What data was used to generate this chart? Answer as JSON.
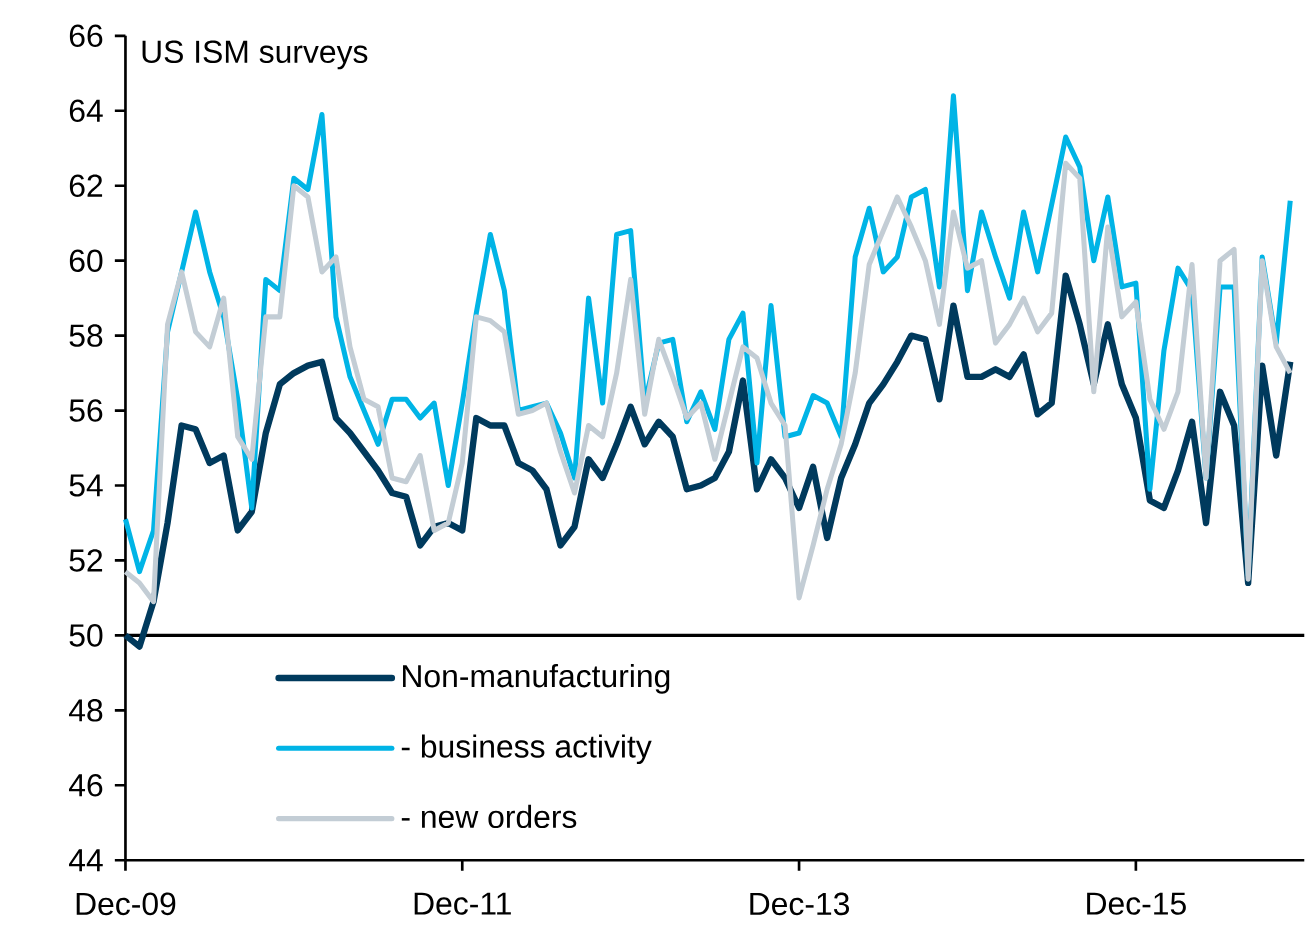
{
  "chart_data": {
    "type": "line",
    "title": "US ISM surveys",
    "x": [
      "2009-12",
      "2010-01",
      "2010-02",
      "2010-03",
      "2010-04",
      "2010-05",
      "2010-06",
      "2010-07",
      "2010-08",
      "2010-09",
      "2010-10",
      "2010-11",
      "2010-12",
      "2011-01",
      "2011-02",
      "2011-03",
      "2011-04",
      "2011-05",
      "2011-06",
      "2011-07",
      "2011-08",
      "2011-09",
      "2011-10",
      "2011-11",
      "2011-12",
      "2012-01",
      "2012-02",
      "2012-03",
      "2012-04",
      "2012-05",
      "2012-06",
      "2012-07",
      "2012-08",
      "2012-09",
      "2012-10",
      "2012-11",
      "2012-12",
      "2013-01",
      "2013-02",
      "2013-03",
      "2013-04",
      "2013-05",
      "2013-06",
      "2013-07",
      "2013-08",
      "2013-09",
      "2013-10",
      "2013-11",
      "2013-12",
      "2014-01",
      "2014-02",
      "2014-03",
      "2014-04",
      "2014-05",
      "2014-06",
      "2014-07",
      "2014-08",
      "2014-09",
      "2014-10",
      "2014-11",
      "2014-12",
      "2015-01",
      "2015-02",
      "2015-03",
      "2015-04",
      "2015-05",
      "2015-06",
      "2015-07",
      "2015-08",
      "2015-09",
      "2015-10",
      "2015-11",
      "2015-12",
      "2016-01",
      "2016-02",
      "2016-03",
      "2016-04",
      "2016-05",
      "2016-06",
      "2016-07",
      "2016-08",
      "2016-09",
      "2016-10",
      "2016-11"
    ],
    "series": [
      {
        "name": "Non-manufacturing",
        "color": "#003a5d",
        "values": [
          50.0,
          49.7,
          50.9,
          53.0,
          55.6,
          55.5,
          54.6,
          54.8,
          52.8,
          53.3,
          55.4,
          56.7,
          57.0,
          57.2,
          57.3,
          55.8,
          55.4,
          54.9,
          54.4,
          53.8,
          53.7,
          52.4,
          52.9,
          53.0,
          52.8,
          55.8,
          55.6,
          55.6,
          54.6,
          54.4,
          53.9,
          52.4,
          52.9,
          54.7,
          54.2,
          55.1,
          56.1,
          55.1,
          55.7,
          55.3,
          53.9,
          54.0,
          54.2,
          54.9,
          56.8,
          53.9,
          54.7,
          54.2,
          53.4,
          54.5,
          52.6,
          54.2,
          55.1,
          56.2,
          56.7,
          57.3,
          58.0,
          57.9,
          56.3,
          58.8,
          56.9,
          56.9,
          57.1,
          56.9,
          57.5,
          55.9,
          56.2,
          59.6,
          58.3,
          56.7,
          58.3,
          56.7,
          55.8,
          53.6,
          53.4,
          54.4,
          55.7,
          53.0,
          56.5,
          55.6,
          51.4,
          57.2,
          54.8,
          57.3
        ]
      },
      {
        "name": "- business activity",
        "color": "#00b4e6",
        "values": [
          53.1,
          51.7,
          52.8,
          58.1,
          59.7,
          61.3,
          59.7,
          58.5,
          56.3,
          53.4,
          59.5,
          59.2,
          62.2,
          61.9,
          63.9,
          58.5,
          56.9,
          56.0,
          55.1,
          56.3,
          56.3,
          55.8,
          56.2,
          54.0,
          56.2,
          58.6,
          60.7,
          59.2,
          56.0,
          56.1,
          56.2,
          55.4,
          54.2,
          59.0,
          56.2,
          60.7,
          60.8,
          56.2,
          57.8,
          57.9,
          55.7,
          56.5,
          55.5,
          57.9,
          58.6,
          54.6,
          58.8,
          55.3,
          55.4,
          56.4,
          56.2,
          55.3,
          60.1,
          61.4,
          59.7,
          60.1,
          61.7,
          61.9,
          59.3,
          64.4,
          59.2,
          61.3,
          60.1,
          59.0,
          61.3,
          59.7,
          61.5,
          63.3,
          62.5,
          60.0,
          61.7,
          59.3,
          59.4,
          53.9,
          57.6,
          59.8,
          59.2,
          54.2,
          59.3,
          59.3,
          51.6,
          60.1,
          57.8,
          61.6
        ]
      },
      {
        "name": "- new orders",
        "color": "#c3cdd5",
        "values": [
          51.7,
          51.4,
          50.9,
          58.3,
          59.7,
          58.1,
          57.7,
          59.0,
          55.3,
          54.7,
          58.5,
          58.5,
          62.0,
          61.7,
          59.7,
          60.1,
          57.7,
          56.3,
          56.1,
          54.2,
          54.1,
          54.8,
          52.8,
          53.0,
          54.6,
          58.5,
          58.4,
          58.1,
          55.9,
          56.0,
          56.2,
          54.9,
          53.8,
          55.6,
          55.3,
          57.0,
          59.5,
          55.9,
          57.9,
          56.9,
          55.8,
          56.2,
          54.7,
          56.2,
          57.7,
          57.4,
          56.2,
          55.6,
          51.0,
          52.4,
          53.9,
          55.1,
          57.0,
          59.9,
          60.8,
          61.7,
          60.9,
          60.0,
          58.3,
          61.3,
          59.8,
          60.0,
          57.8,
          58.3,
          59.0,
          58.1,
          58.6,
          62.6,
          62.2,
          56.5,
          60.9,
          58.5,
          58.9,
          56.3,
          55.5,
          56.5,
          59.9,
          54.2,
          60.0,
          60.3,
          51.5,
          60.0,
          57.7,
          57.0
        ]
      }
    ],
    "xlim": [
      "2009-12",
      "2016-12"
    ],
    "xticks": [
      {
        "value": "2009-12",
        "label": "Dec-09"
      },
      {
        "value": "2011-12",
        "label": "Dec-11"
      },
      {
        "value": "2013-12",
        "label": "Dec-13"
      },
      {
        "value": "2015-12",
        "label": "Dec-15"
      }
    ],
    "ylim": [
      44,
      66
    ],
    "yticks": [
      44,
      46,
      48,
      50,
      52,
      54,
      56,
      58,
      60,
      62,
      64,
      66
    ],
    "ref_lines": [
      {
        "axis": "y",
        "value": 50,
        "color": "#000000"
      }
    ],
    "legend": "bottom left",
    "grid": false,
    "marker": "none",
    "line_style": "solid"
  }
}
